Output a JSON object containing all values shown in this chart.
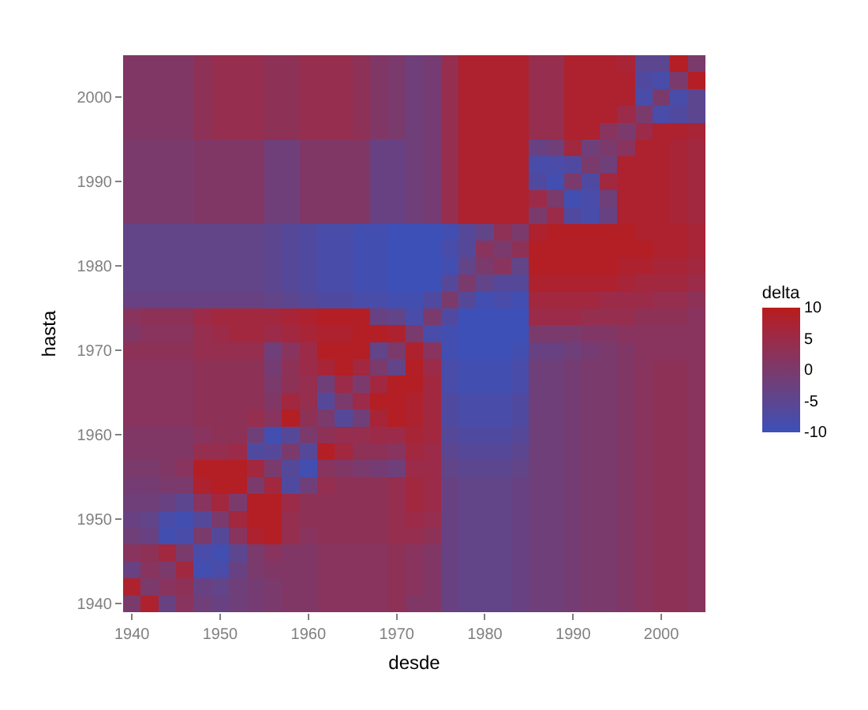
{
  "chart_data": {
    "type": "heatmap",
    "xlabel": "desde",
    "ylabel": "hasta",
    "clabel": "delta",
    "categories": [
      "1940",
      null,
      null,
      null,
      null,
      "1950",
      null,
      null,
      null,
      null,
      "1960",
      null,
      null,
      null,
      null,
      "1970",
      null,
      null,
      null,
      null,
      "1980",
      null,
      null,
      null,
      null,
      "1990",
      null,
      null,
      null,
      null,
      "2000",
      null,
      null
    ],
    "y_categories": [
      null,
      null,
      "2000",
      null,
      null,
      null,
      null,
      "1990",
      null,
      null,
      null,
      null,
      "1980",
      null,
      null,
      null,
      null,
      "1970",
      null,
      null,
      null,
      null,
      "1960",
      null,
      null,
      null,
      null,
      "1950",
      null,
      null,
      null,
      null,
      "1940"
    ],
    "clim": [
      -10,
      10
    ],
    "cticks": [
      -10,
      -5,
      0,
      5,
      10
    ],
    "cells": [
      [
        1,
        1,
        1,
        1,
        3,
        4,
        4,
        4,
        3,
        3,
        4,
        4,
        4,
        3,
        1,
        0,
        -2,
        -1,
        4,
        8,
        8,
        8,
        8,
        4,
        4,
        8,
        8,
        8,
        7,
        -5,
        -5,
        9,
        0
      ],
      [
        1,
        1,
        1,
        1,
        3,
        4,
        4,
        4,
        3,
        3,
        4,
        4,
        4,
        3,
        1,
        0,
        -2,
        -1,
        4,
        8,
        8,
        8,
        8,
        4,
        4,
        8,
        8,
        8,
        8,
        -7,
        -8,
        0,
        9
      ],
      [
        1,
        1,
        1,
        1,
        3,
        4,
        4,
        4,
        3,
        3,
        4,
        4,
        4,
        3,
        1,
        0,
        -2,
        -1,
        4,
        8,
        8,
        8,
        8,
        4,
        4,
        8,
        8,
        8,
        8,
        -8,
        0,
        -8,
        -5
      ],
      [
        1,
        1,
        1,
        1,
        3,
        4,
        4,
        4,
        3,
        3,
        4,
        4,
        4,
        3,
        1,
        0,
        -2,
        -1,
        4,
        8,
        8,
        8,
        8,
        4,
        4,
        8,
        8,
        8,
        5,
        0,
        -8,
        -7,
        -5
      ],
      [
        1,
        1,
        1,
        1,
        3,
        4,
        4,
        4,
        3,
        3,
        4,
        4,
        4,
        3,
        1,
        0,
        -2,
        -1,
        4,
        8,
        8,
        8,
        8,
        4,
        4,
        8,
        8,
        2,
        0,
        5,
        8,
        8,
        7
      ],
      [
        0,
        0,
        0,
        0,
        1,
        1,
        1,
        1,
        -2,
        -2,
        1,
        1,
        1,
        1,
        -3,
        -3,
        -2,
        -1,
        4,
        8,
        8,
        8,
        8,
        -3,
        -2,
        6,
        -2,
        0,
        2,
        8,
        8,
        7,
        6
      ],
      [
        0,
        0,
        0,
        0,
        1,
        1,
        1,
        1,
        -2,
        -2,
        1,
        1,
        1,
        1,
        -3,
        -3,
        -2,
        -1,
        4,
        8,
        8,
        8,
        8,
        -8,
        -8,
        -7,
        0,
        -2,
        8,
        8,
        8,
        7,
        6
      ],
      [
        0,
        0,
        0,
        0,
        1,
        1,
        1,
        1,
        -2,
        -2,
        1,
        1,
        1,
        1,
        -3,
        -3,
        -2,
        -1,
        4,
        8,
        8,
        8,
        8,
        -7,
        -9,
        0,
        -7,
        6,
        8,
        8,
        8,
        7,
        6
      ],
      [
        0,
        0,
        0,
        0,
        1,
        1,
        1,
        1,
        -2,
        -2,
        1,
        1,
        1,
        1,
        -3,
        -3,
        -2,
        -1,
        4,
        8,
        8,
        8,
        8,
        5,
        0,
        -9,
        -8,
        -2,
        8,
        8,
        8,
        7,
        6
      ],
      [
        0,
        0,
        0,
        0,
        1,
        1,
        1,
        1,
        -2,
        -2,
        1,
        1,
        1,
        1,
        -3,
        -3,
        -2,
        -1,
        4,
        8,
        8,
        8,
        8,
        0,
        5,
        -7,
        -8,
        -3,
        8,
        8,
        8,
        7,
        6
      ],
      [
        -4,
        -4,
        -4,
        -4,
        -4,
        -4,
        -4,
        -4,
        -5,
        -6,
        -7,
        -8,
        -8,
        -9,
        -9,
        -10,
        -10,
        -10,
        -9,
        -6,
        -4,
        3,
        0,
        8,
        9,
        9,
        9,
        9,
        9,
        8,
        8,
        8,
        7
      ],
      [
        -4,
        -4,
        -4,
        -4,
        -4,
        -4,
        -4,
        -4,
        -5,
        -6,
        -7,
        -8,
        -8,
        -9,
        -9,
        -10,
        -10,
        -10,
        -8,
        -6,
        2,
        0,
        3,
        9,
        9,
        9,
        9,
        9,
        9,
        9,
        8,
        8,
        7
      ],
      [
        -4,
        -4,
        -4,
        -4,
        -4,
        -4,
        -4,
        -4,
        -5,
        -6,
        -7,
        -8,
        -8,
        -9,
        -9,
        -10,
        -10,
        -10,
        -9,
        -4,
        0,
        2,
        -4,
        9,
        9,
        9,
        9,
        9,
        8,
        8,
        7,
        7,
        6
      ],
      [
        -4,
        -4,
        -4,
        -4,
        -4,
        -4,
        -4,
        -4,
        -5,
        -6,
        -7,
        -8,
        -8,
        -9,
        -9,
        -10,
        -10,
        -10,
        -6,
        0,
        -4,
        -6,
        -6,
        8,
        8,
        8,
        8,
        8,
        7,
        6,
        6,
        6,
        5
      ],
      [
        -3,
        -3,
        -3,
        -3,
        -3,
        -3,
        -3,
        -3,
        -4,
        -5,
        -6,
        -7,
        -7,
        -8,
        -8,
        -9,
        -9,
        -7,
        0,
        -6,
        -9,
        -8,
        -9,
        6,
        6,
        6,
        6,
        5,
        5,
        5,
        4,
        4,
        3
      ],
      [
        2,
        3,
        3,
        3,
        5,
        6,
        6,
        6,
        6,
        7,
        8,
        9,
        9,
        9,
        -3,
        -4,
        -8,
        0,
        -7,
        -10,
        -10,
        -10,
        -10,
        5,
        5,
        5,
        4,
        4,
        4,
        3,
        3,
        3,
        2
      ],
      [
        1,
        2,
        2,
        2,
        4,
        5,
        6,
        6,
        5,
        6,
        7,
        8,
        8,
        9,
        9,
        8,
        0,
        -8,
        -9,
        -10,
        -10,
        -10,
        -10,
        0,
        0,
        0,
        1,
        1,
        2,
        2,
        2,
        2,
        2
      ],
      [
        3,
        3,
        3,
        3,
        4,
        4,
        4,
        4,
        -2,
        2,
        5,
        9,
        9,
        9,
        -4,
        0,
        8,
        2,
        -9,
        -10,
        -10,
        -10,
        -9,
        -3,
        -3,
        -2,
        -1,
        0,
        1,
        2,
        2,
        2,
        2
      ],
      [
        2,
        2,
        2,
        2,
        3,
        3,
        3,
        3,
        -1,
        3,
        5,
        7,
        9,
        6,
        0,
        -4,
        9,
        5,
        -8,
        -9,
        -9,
        -9,
        -8,
        -2,
        -2,
        -1,
        0,
        0,
        1,
        2,
        3,
        3,
        2
      ],
      [
        2,
        2,
        2,
        2,
        3,
        3,
        3,
        3,
        0,
        3,
        4,
        -2,
        5,
        0,
        6,
        9,
        9,
        6,
        -8,
        -9,
        -9,
        -9,
        -8,
        -2,
        -2,
        -1,
        0,
        0,
        1,
        2,
        3,
        3,
        2
      ],
      [
        2,
        2,
        2,
        2,
        3,
        3,
        3,
        3,
        1,
        6,
        4,
        -6,
        0,
        5,
        9,
        9,
        8,
        6,
        -7,
        -8,
        -8,
        -8,
        -7,
        -2,
        -2,
        -1,
        0,
        0,
        1,
        2,
        3,
        3,
        2
      ],
      [
        2,
        2,
        2,
        2,
        3,
        3,
        3,
        4,
        2,
        9,
        3,
        0,
        -6,
        -2,
        7,
        9,
        8,
        6,
        -7,
        -8,
        -8,
        -8,
        -7,
        -2,
        -2,
        -1,
        0,
        0,
        1,
        2,
        3,
        3,
        2
      ],
      [
        1,
        1,
        1,
        1,
        2,
        3,
        3,
        -2,
        -9,
        -6,
        0,
        3,
        4,
        4,
        5,
        5,
        7,
        6,
        -6,
        -7,
        -7,
        -7,
        -6,
        -2,
        -2,
        -1,
        0,
        0,
        1,
        2,
        3,
        3,
        2
      ],
      [
        1,
        1,
        1,
        1,
        4,
        4,
        5,
        -7,
        -6,
        0,
        -6,
        9,
        6,
        3,
        3,
        2,
        6,
        5,
        -5,
        -6,
        -6,
        -6,
        -5,
        -2,
        -2,
        -1,
        0,
        0,
        1,
        2,
        3,
        3,
        2
      ],
      [
        0,
        0,
        1,
        2,
        9,
        9,
        9,
        6,
        0,
        -6,
        -9,
        2,
        1,
        0,
        -1,
        -2,
        5,
        5,
        -4,
        -5,
        -5,
        -5,
        -4,
        -2,
        -2,
        -1,
        0,
        0,
        1,
        2,
        3,
        3,
        2
      ],
      [
        -1,
        -1,
        0,
        0,
        8,
        9,
        9,
        0,
        6,
        -7,
        -2,
        4,
        3,
        3,
        3,
        4,
        6,
        5,
        -3,
        -4,
        -4,
        -4,
        -3,
        -2,
        -2,
        -1,
        0,
        0,
        1,
        2,
        3,
        3,
        2
      ],
      [
        -2,
        -2,
        -3,
        -5,
        2,
        6,
        0,
        9,
        9,
        5,
        3,
        3,
        3,
        3,
        3,
        4,
        6,
        5,
        -3,
        -4,
        -4,
        -4,
        -3,
        -2,
        -2,
        -1,
        0,
        0,
        1,
        2,
        3,
        3,
        2
      ],
      [
        -3,
        -4,
        -8,
        -9,
        -6,
        0,
        6,
        9,
        9,
        4,
        3,
        3,
        3,
        3,
        3,
        4,
        5,
        4,
        -3,
        -4,
        -4,
        -4,
        -3,
        -2,
        -2,
        -1,
        0,
        0,
        1,
        2,
        3,
        3,
        2
      ],
      [
        -2,
        -3,
        -9,
        -8,
        0,
        -6,
        2,
        8,
        9,
        4,
        2,
        3,
        3,
        3,
        3,
        4,
        4,
        3,
        -3,
        -4,
        -4,
        -4,
        -3,
        -2,
        -2,
        -1,
        0,
        0,
        1,
        2,
        3,
        3,
        2
      ],
      [
        2,
        3,
        6,
        0,
        -8,
        -9,
        -5,
        0,
        2,
        1,
        1,
        2,
        2,
        2,
        2,
        3,
        2,
        1,
        -3,
        -4,
        -4,
        -4,
        -3,
        -2,
        -2,
        -1,
        0,
        0,
        1,
        2,
        3,
        3,
        2
      ],
      [
        -3,
        2,
        0,
        6,
        -9,
        -8,
        -3,
        0,
        1,
        1,
        1,
        2,
        2,
        2,
        2,
        3,
        2,
        1,
        -3,
        -4,
        -4,
        -4,
        -3,
        -2,
        -2,
        -1,
        0,
        0,
        1,
        2,
        3,
        3,
        2
      ],
      [
        8,
        0,
        2,
        3,
        -3,
        -4,
        -2,
        -1,
        0,
        1,
        1,
        2,
        2,
        2,
        2,
        3,
        2,
        1,
        -3,
        -4,
        -4,
        -4,
        -3,
        -2,
        -2,
        -1,
        0,
        0,
        1,
        2,
        3,
        3,
        2
      ],
      [
        0,
        8,
        -3,
        2,
        -2,
        -3,
        -2,
        -1,
        0,
        1,
        1,
        2,
        2,
        2,
        2,
        3,
        1,
        1,
        -3,
        -4,
        -4,
        -4,
        -3,
        -2,
        -2,
        -1,
        0,
        0,
        1,
        2,
        3,
        3,
        2
      ]
    ]
  }
}
